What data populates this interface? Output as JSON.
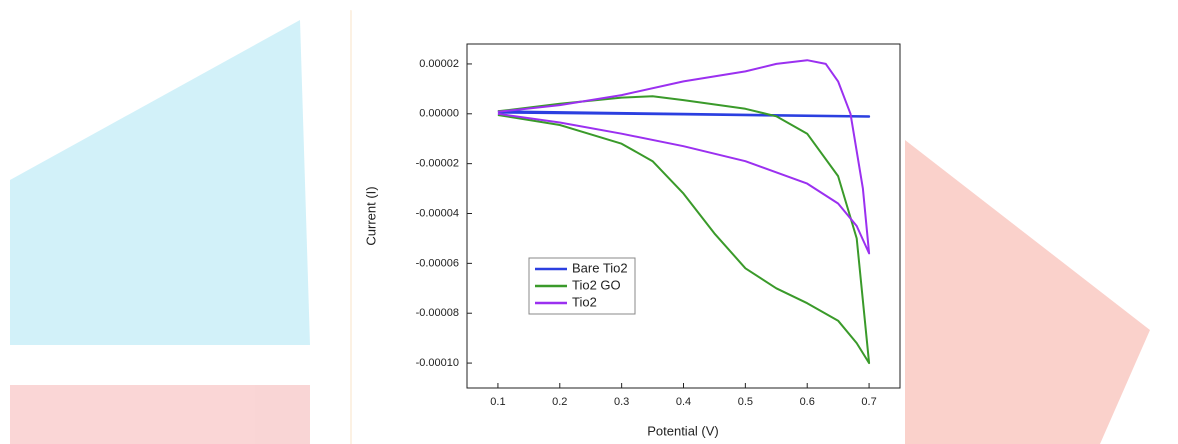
{
  "chart_data": {
    "type": "line",
    "xlabel": "Potential (V)",
    "ylabel": "Current (I)",
    "xlim": [
      0.05,
      0.75
    ],
    "ylim": [
      -0.00011,
      2.8e-05
    ],
    "xticks": [
      0.1,
      0.2,
      0.3,
      0.4,
      0.5,
      0.6,
      0.7
    ],
    "yticks": [
      {
        "value": 2e-05,
        "label": "0.00002"
      },
      {
        "value": 0,
        "label": "0.00000"
      },
      {
        "value": -2e-05,
        "label": "-0.00002"
      },
      {
        "value": -4e-05,
        "label": "-0.00004"
      },
      {
        "value": -6e-05,
        "label": "-0.00006"
      },
      {
        "value": -8e-05,
        "label": "-0.00008"
      },
      {
        "value": -0.0001,
        "label": "-0.00010"
      }
    ],
    "legend": "lower left",
    "series": [
      {
        "name": "Bare Tio2",
        "color": "#2b3fe0",
        "x": [
          0.1,
          0.4,
          0.7,
          0.7,
          0.4,
          0.1
        ],
        "values": [
          5e-07,
          -3e-07,
          -1.2e-06,
          -1e-06,
          0.0,
          1e-06
        ]
      },
      {
        "name": "Tio2 GO",
        "color": "#3a9a2a",
        "x": [
          0.1,
          0.2,
          0.3,
          0.35,
          0.4,
          0.5,
          0.55,
          0.6,
          0.65,
          0.68,
          0.7,
          0.7,
          0.68,
          0.65,
          0.6,
          0.55,
          0.5,
          0.45,
          0.4,
          0.35,
          0.3,
          0.2,
          0.1
        ],
        "values": [
          1e-06,
          4e-06,
          6.5e-06,
          7e-06,
          5.5e-06,
          2e-06,
          -1e-06,
          -8e-06,
          -2.5e-05,
          -5e-05,
          -0.0001,
          -0.0001,
          -9.2e-05,
          -8.3e-05,
          -7.6e-05,
          -7e-05,
          -6.2e-05,
          -4.8e-05,
          -3.2e-05,
          -1.9e-05,
          -1.2e-05,
          -4.5e-06,
          -5e-07
        ]
      },
      {
        "name": "Tio2",
        "color": "#9b30f0",
        "x": [
          0.1,
          0.2,
          0.3,
          0.4,
          0.5,
          0.55,
          0.6,
          0.63,
          0.65,
          0.67,
          0.69,
          0.7,
          0.7,
          0.68,
          0.65,
          0.6,
          0.5,
          0.4,
          0.3,
          0.2,
          0.1
        ],
        "values": [
          8e-07,
          3.5e-06,
          7.5e-06,
          1.3e-05,
          1.7e-05,
          2e-05,
          2.15e-05,
          2e-05,
          1.3e-05,
          0.0,
          -3e-05,
          -5.6e-05,
          -5.6e-05,
          -4.5e-05,
          -3.6e-05,
          -2.8e-05,
          -1.9e-05,
          -1.3e-05,
          -8e-06,
          -3.5e-06,
          0.0
        ]
      }
    ]
  }
}
